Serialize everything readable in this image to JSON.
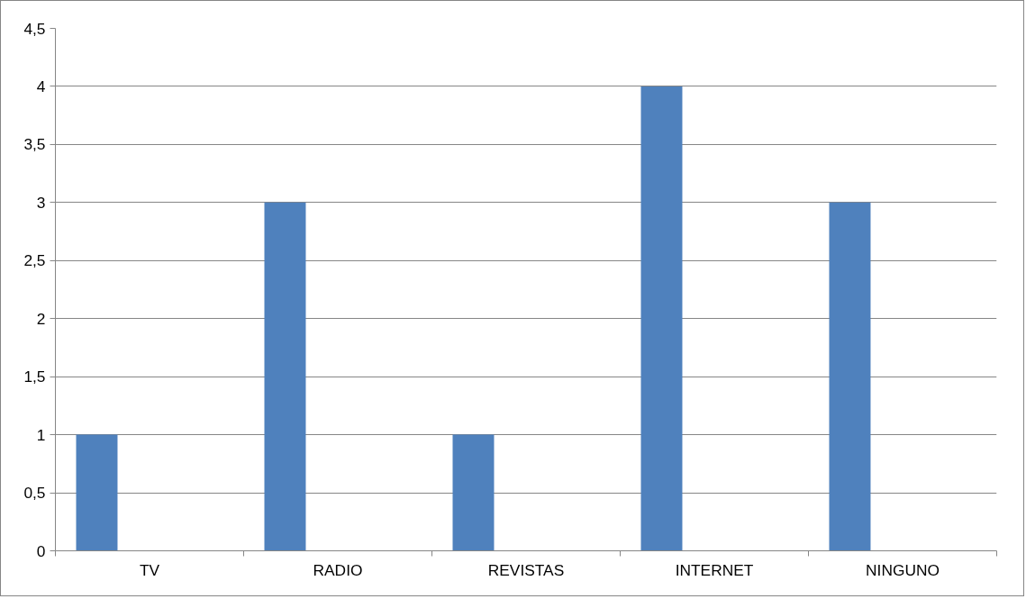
{
  "chart_data": {
    "type": "bar",
    "categories": [
      "TV",
      "RADIO",
      "REVISTAS",
      "INTERNET",
      "NINGUNO"
    ],
    "series": [
      {
        "color": "#4f81bd",
        "values": [
          1,
          3,
          1,
          4,
          3
        ]
      }
    ],
    "ylim": [
      0,
      4.5
    ],
    "yticks": [
      0,
      {
        "value": 0.5,
        "label": "0,5"
      },
      1,
      {
        "value": 1.5,
        "label": "1,5"
      },
      2,
      {
        "value": 2.5,
        "label": "2,5"
      },
      3,
      {
        "value": 3.5,
        "label": "3,5"
      },
      4,
      {
        "value": 4.5,
        "label": "4,5"
      }
    ],
    "grid": "y"
  }
}
